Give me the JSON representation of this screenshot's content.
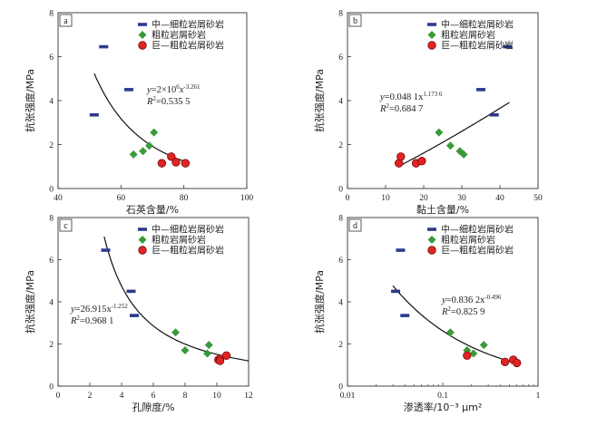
{
  "colors": {
    "fine": "#2b3a8c",
    "coarse": "#3a9a3a",
    "giant": "#e02424",
    "giant_stroke": "#7a0d0d",
    "axis": "#333333",
    "fit": "#111111"
  },
  "chart_data": [
    {
      "type": "scatter",
      "panel_label": "a",
      "xlabel": "石英含量/%",
      "ylabel": "抗张强度/MPa",
      "xlim": [
        40,
        100
      ],
      "ylim": [
        0,
        8
      ],
      "xticks": [
        "40",
        "60",
        "80",
        "100"
      ],
      "yticks": [
        "0",
        "2",
        "4",
        "6",
        "8"
      ],
      "xscale": "linear",
      "legend": "top-right",
      "series": [
        {
          "name": "中—细粒岩屑砂岩",
          "marker": "dash",
          "points": [
            [
              51.5,
              3.35
            ],
            [
              54.5,
              6.45
            ],
            [
              62.5,
              4.5
            ]
          ]
        },
        {
          "name": "粗粒岩屑砂岩",
          "marker": "diamond",
          "points": [
            [
              64,
              1.55
            ],
            [
              67,
              1.7
            ],
            [
              69,
              1.95
            ],
            [
              70.5,
              2.55
            ]
          ]
        },
        {
          "name": "巨—粗粒岩屑砂岩",
          "marker": "circle",
          "points": [
            [
              73,
              1.15
            ],
            [
              76,
              1.45
            ],
            [
              77.5,
              1.2
            ],
            [
              80.5,
              1.15
            ]
          ]
        }
      ],
      "fit": {
        "model": "power",
        "a": 2000000,
        "b": -3.261,
        "xrange": [
          51.5,
          80.5
        ]
      },
      "equation": {
        "lhs": "y",
        "rhs": "=2×10",
        "sup1": "6",
        "mid": "x",
        "sup2": "-3.261",
        "r2": "R",
        "r2sup": "2",
        "r2val": "=0.535 5"
      }
    },
    {
      "type": "scatter",
      "panel_label": "b",
      "xlabel": "黏土含量/%",
      "ylabel": "抗张强度/MPa",
      "xlim": [
        0,
        50
      ],
      "ylim": [
        0,
        8
      ],
      "xticks": [
        "0",
        "10",
        "20",
        "30",
        "40",
        "50"
      ],
      "yticks": [
        "0",
        "2",
        "4",
        "6",
        "8"
      ],
      "xscale": "linear",
      "legend": "top-right",
      "series": [
        {
          "name": "中—细粒岩屑砂岩",
          "marker": "dash",
          "points": [
            [
              35,
              4.5
            ],
            [
              38.5,
              3.35
            ],
            [
              42,
              6.45
            ]
          ]
        },
        {
          "name": "粗粒岩屑砂岩",
          "marker": "diamond",
          "points": [
            [
              24,
              2.55
            ],
            [
              27,
              1.95
            ],
            [
              29.5,
              1.7
            ],
            [
              30.5,
              1.55
            ]
          ]
        },
        {
          "name": "巨—粗粒岩屑砂岩",
          "marker": "circle",
          "points": [
            [
              13.5,
              1.15
            ],
            [
              14,
              1.45
            ],
            [
              18,
              1.15
            ],
            [
              19.5,
              1.25
            ]
          ]
        }
      ],
      "fit": {
        "model": "power",
        "a": 0.0481,
        "b": 1.1736,
        "xrange": [
          13.5,
          42.5
        ]
      },
      "equation": {
        "lhs": "y",
        "rhs": "=0.048 1x",
        "sup1": "",
        "mid": "",
        "sup2": "1.173 6",
        "r2": "R",
        "r2sup": "2",
        "r2val": "=0.684 7"
      }
    },
    {
      "type": "scatter",
      "panel_label": "c",
      "xlabel": "孔隙度/%",
      "ylabel": "抗张强度/MPa",
      "xlim": [
        0,
        12
      ],
      "ylim": [
        0,
        8
      ],
      "xticks": [
        "0",
        "2",
        "4",
        "6",
        "8",
        "10",
        "12"
      ],
      "yticks": [
        "0",
        "2",
        "4",
        "6",
        "8"
      ],
      "xscale": "linear",
      "legend": "top-right",
      "series": [
        {
          "name": "中—细粒岩屑砂岩",
          "marker": "dash",
          "points": [
            [
              3,
              6.45
            ],
            [
              4.6,
              4.5
            ],
            [
              4.8,
              3.35
            ]
          ]
        },
        {
          "name": "粗粒岩屑砂岩",
          "marker": "diamond",
          "points": [
            [
              7.4,
              2.55
            ],
            [
              8,
              1.7
            ],
            [
              9.4,
              1.55
            ],
            [
              9.5,
              1.95
            ]
          ]
        },
        {
          "name": "巨—粗粒岩屑砂岩",
          "marker": "circle",
          "points": [
            [
              10.1,
              1.25
            ],
            [
              10.2,
              1.3
            ],
            [
              10.6,
              1.45
            ],
            [
              10.2,
              1.2
            ]
          ]
        }
      ],
      "fit": {
        "model": "power",
        "a": 26.915,
        "b": -1.252,
        "xrange": [
          2.9,
          12
        ]
      },
      "equation": {
        "lhs": "y",
        "rhs": "=26.915x",
        "sup1": "",
        "mid": "",
        "sup2": "-1.252",
        "r2": "R",
        "r2sup": "2",
        "r2val": "=0.968 1"
      }
    },
    {
      "type": "scatter",
      "panel_label": "d",
      "xlabel": "渗透率/10⁻³ μm²",
      "ylabel": "抗张强度/MPa",
      "xlim": [
        0.01,
        1
      ],
      "ylim": [
        0,
        8
      ],
      "xticks": [
        "0.01",
        "0.1",
        "1"
      ],
      "yticks": [
        "0",
        "2",
        "4",
        "6",
        "8"
      ],
      "xscale": "log",
      "legend": "top-right",
      "series": [
        {
          "name": "中—细粒岩屑砂岩",
          "marker": "dash",
          "points": [
            [
              0.032,
              4.5
            ],
            [
              0.036,
              6.45
            ],
            [
              0.04,
              3.35
            ]
          ]
        },
        {
          "name": "粗粒岩屑砂岩",
          "marker": "diamond",
          "points": [
            [
              0.12,
              2.55
            ],
            [
              0.18,
              1.7
            ],
            [
              0.21,
              1.55
            ],
            [
              0.27,
              1.95
            ]
          ]
        },
        {
          "name": "巨—粗粒岩屑砂岩",
          "marker": "circle",
          "points": [
            [
              0.18,
              1.45
            ],
            [
              0.45,
              1.15
            ],
            [
              0.55,
              1.25
            ],
            [
              0.6,
              1.1
            ]
          ]
        }
      ],
      "fit": {
        "model": "power",
        "a": 0.8362,
        "b": -0.496,
        "xrange": [
          0.03,
          0.62
        ]
      },
      "equation": {
        "lhs": "y",
        "rhs": "=0.836 2x",
        "sup1": "",
        "mid": "",
        "sup2": "-0.496",
        "r2": "R",
        "r2sup": "2",
        "r2val": "=0.825 9"
      }
    }
  ]
}
